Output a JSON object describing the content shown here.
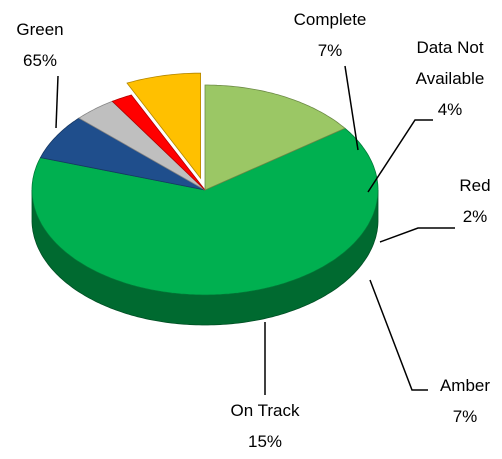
{
  "chart_data": {
    "type": "pie",
    "categories": [
      "Green",
      "Complete",
      "Data Not Available",
      "Red",
      "Amber",
      "On Track"
    ],
    "values": [
      65,
      7,
      4,
      2,
      7,
      15
    ],
    "value_labels": [
      "65%",
      "7%",
      "4%",
      "2%",
      "7%",
      "15%"
    ],
    "colors": [
      "#00b050",
      "#1f4e8c",
      "#bfbfbf",
      "#ff0000",
      "#ffc000",
      "#9bc765"
    ]
  }
}
